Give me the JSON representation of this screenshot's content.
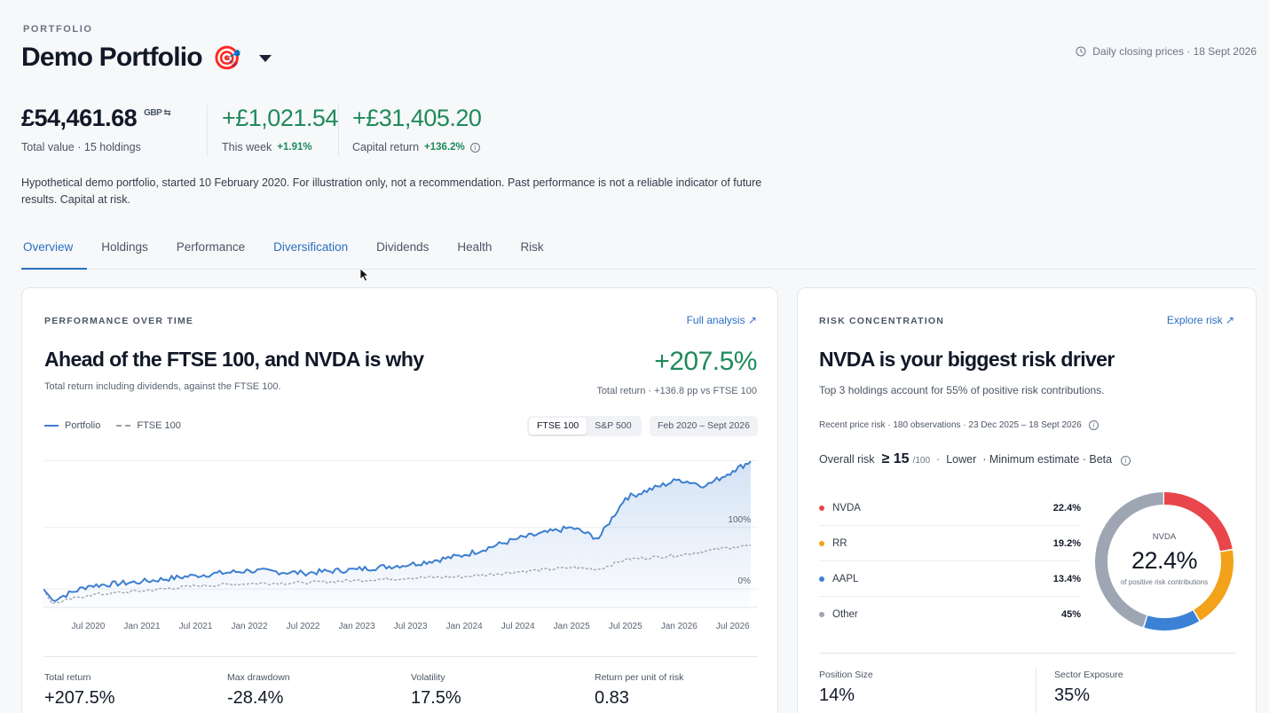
{
  "header": {
    "eyebrow": "PORTFOLIO",
    "title": "Demo Portfolio",
    "emoji": "🎯",
    "prices_note": "Daily closing prices · 18 Sept 2026"
  },
  "stats": {
    "total_value": "£54,461.68",
    "currency": "GBP ⇆",
    "total_value_sub": "Total value · 15 holdings",
    "week_change": "+£1,021.54",
    "week_label": "This week",
    "week_pct": "+1.91%",
    "capital_return": "+£31,405.20",
    "capital_label": "Capital return",
    "capital_pct": "+136.2%"
  },
  "disclaimer": "Hypothetical demo portfolio, started 10 February 2020. For illustration only, not a recommendation. Past performance is not a reliable indicator of future results. Capital at risk.",
  "tabs": [
    {
      "label": "Overview"
    },
    {
      "label": "Holdings"
    },
    {
      "label": "Performance"
    },
    {
      "label": "Diversification"
    },
    {
      "label": "Dividends"
    },
    {
      "label": "Health"
    },
    {
      "label": "Risk"
    }
  ],
  "performance": {
    "eyebrow": "PERFORMANCE OVER TIME",
    "link": "Full analysis ↗",
    "headline": "Ahead of the FTSE 100, and NVDA is why",
    "note": "Total return including dividends, against the FTSE 100.",
    "big_value": "+207.5%",
    "big_sub": "Total return · +136.8 pp vs FTSE 100",
    "legend": [
      "Portfolio",
      "FTSE 100"
    ],
    "bench_options": [
      "FTSE 100",
      "S&P 500"
    ],
    "date_range": "Feb 2020 – Sept 2026",
    "metrics": [
      {
        "label": "Total return",
        "value": "+207.5%"
      },
      {
        "label": "Max drawdown",
        "value": "-28.4%"
      },
      {
        "label": "Volatility",
        "value": "17.5%"
      },
      {
        "label": "Return per unit of risk",
        "value": "0.83"
      }
    ]
  },
  "chart_data": {
    "type": "line",
    "title": "",
    "xlabel": "",
    "ylabel": "",
    "x_ticks": [
      "Jul 2020",
      "Jan 2021",
      "Jul 2021",
      "Jan 2022",
      "Jul 2022",
      "Jan 2023",
      "Jul 2023",
      "Jan 2024",
      "Jul 2024",
      "Jan 2025",
      "Jul 2025",
      "Jan 2026",
      "Jul 2026"
    ],
    "y_ticks": [
      "0%",
      "100%"
    ],
    "ylim": [
      -30,
      215
    ],
    "x": [
      "Feb 2020",
      "Mar 2020",
      "Jul 2020",
      "Jan 2021",
      "Jul 2021",
      "Jan 2022",
      "Jul 2022",
      "Jan 2023",
      "Jul 2023",
      "Jan 2024",
      "Jul 2024",
      "Jan 2025",
      "Apr 2025",
      "Jul 2025",
      "Jan 2026",
      "Apr 2026",
      "Jul 2026",
      "Sept 2026"
    ],
    "series": [
      {
        "name": "Portfolio",
        "values": [
          0,
          -18,
          5,
          12,
          22,
          30,
          26,
          32,
          40,
          55,
          82,
          100,
          82,
          148,
          178,
          168,
          192,
          207.5
        ]
      },
      {
        "name": "FTSE 100",
        "values": [
          0,
          -24,
          -10,
          -3,
          5,
          9,
          10,
          14,
          18,
          20,
          28,
          35,
          32,
          48,
          55,
          62,
          68,
          70.7
        ]
      }
    ],
    "grid": true,
    "legend": "top-left"
  },
  "risk": {
    "eyebrow": "RISK CONCENTRATION",
    "link": "Explore risk ↗",
    "headline": "NVDA is your biggest risk driver",
    "note": "Top 3 holdings account for 55% of positive risk contributions.",
    "meta": "Recent price risk · 180 observations · 23 Dec 2025 – 18 Sept 2026",
    "overall_label": "Overall risk",
    "overall_score": "≥ 15",
    "overall_of": "/100",
    "overall_level": "Lower",
    "overall_extra": "· Minimum estimate · Beta",
    "items": [
      {
        "name": "NVDA",
        "value": "22.4%",
        "pct": 22.4,
        "color": "#e8464a"
      },
      {
        "name": "RR",
        "value": "19.2%",
        "pct": 19.2,
        "color": "#f2a21b"
      },
      {
        "name": "AAPL",
        "value": "13.4%",
        "pct": 13.4,
        "color": "#3b82d6"
      },
      {
        "name": "Other",
        "value": "45%",
        "pct": 45,
        "color": "#9ea6b3"
      }
    ],
    "donut_title": "NVDA",
    "donut_value": "22.4%",
    "donut_sub": "of positive risk contributions",
    "bottom": [
      {
        "label": "Position Size",
        "value": "14%"
      },
      {
        "label": "Sector Exposure",
        "value": "35%"
      }
    ]
  }
}
